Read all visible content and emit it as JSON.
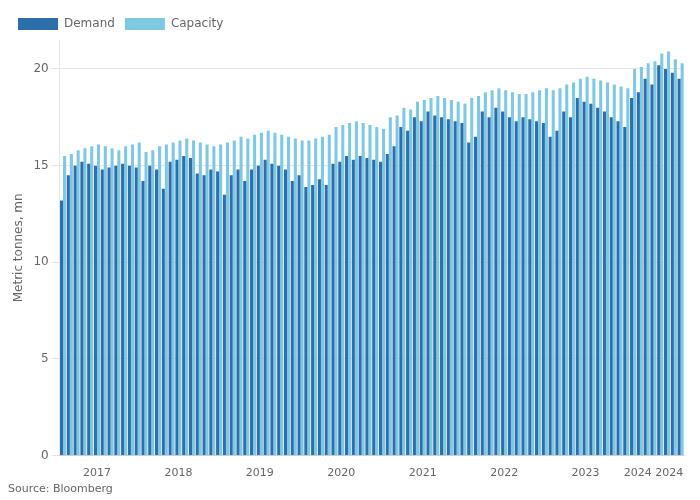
{
  "chart_data": {
    "type": "bar",
    "categories": [
      null,
      null,
      null,
      null,
      null,
      "2017",
      null,
      null,
      null,
      null,
      null,
      null,
      null,
      null,
      null,
      null,
      null,
      "2018",
      null,
      null,
      null,
      null,
      null,
      null,
      null,
      null,
      null,
      null,
      null,
      "2019",
      null,
      null,
      null,
      null,
      null,
      null,
      null,
      null,
      null,
      null,
      null,
      "2020",
      null,
      null,
      null,
      null,
      null,
      null,
      null,
      null,
      null,
      null,
      null,
      "2021",
      null,
      null,
      null,
      null,
      null,
      null,
      null,
      null,
      null,
      null,
      null,
      "2022",
      null,
      null,
      null,
      null,
      null,
      null,
      null,
      null,
      null,
      null,
      null,
      "2023",
      null,
      null,
      null,
      null,
      null,
      null,
      null,
      null,
      null,
      "2024 2024",
      null,
      null,
      null,
      null
    ],
    "series": [
      {
        "name": "Demand",
        "color": "#2d6fac",
        "values": [
          13.2,
          14.5,
          15.0,
          15.2,
          15.1,
          15.0,
          14.8,
          14.9,
          15.0,
          15.1,
          15.0,
          14.9,
          14.2,
          15.0,
          14.8,
          13.8,
          15.2,
          15.3,
          15.5,
          15.4,
          14.6,
          14.5,
          14.8,
          14.7,
          13.5,
          14.5,
          14.8,
          14.2,
          14.8,
          15.0,
          15.3,
          15.1,
          15.0,
          14.8,
          14.2,
          14.5,
          13.9,
          14.0,
          14.3,
          14.0,
          15.1,
          15.2,
          15.5,
          15.3,
          15.5,
          15.4,
          15.3,
          15.2,
          15.6,
          16.0,
          17.0,
          16.8,
          17.5,
          17.3,
          17.8,
          17.6,
          17.5,
          17.4,
          17.3,
          17.2,
          16.2,
          16.5,
          17.8,
          17.5,
          18.0,
          17.8,
          17.5,
          17.3,
          17.5,
          17.4,
          17.3,
          17.2,
          16.5,
          16.8,
          17.8,
          17.5,
          18.5,
          18.3,
          18.2,
          18.0,
          17.8,
          17.5,
          17.3,
          17.0,
          18.5,
          18.8,
          19.5,
          19.2,
          20.2,
          20.0,
          19.8,
          19.5
        ]
      },
      {
        "name": "Capacity",
        "color": "#7ec8e3",
        "values": [
          15.5,
          15.6,
          15.8,
          15.9,
          16.0,
          16.1,
          16.0,
          15.9,
          15.8,
          16.0,
          16.1,
          16.2,
          15.7,
          15.8,
          16.0,
          16.1,
          16.2,
          16.3,
          16.4,
          16.3,
          16.2,
          16.1,
          16.0,
          16.1,
          16.2,
          16.3,
          16.5,
          16.4,
          16.6,
          16.7,
          16.8,
          16.7,
          16.6,
          16.5,
          16.4,
          16.3,
          16.3,
          16.4,
          16.5,
          16.6,
          17.0,
          17.1,
          17.2,
          17.3,
          17.2,
          17.1,
          17.0,
          16.9,
          17.5,
          17.6,
          18.0,
          17.9,
          18.3,
          18.4,
          18.5,
          18.6,
          18.5,
          18.4,
          18.3,
          18.2,
          18.5,
          18.6,
          18.8,
          18.9,
          19.0,
          18.9,
          18.8,
          18.7,
          18.7,
          18.8,
          18.9,
          19.0,
          18.9,
          19.0,
          19.2,
          19.3,
          19.5,
          19.6,
          19.5,
          19.4,
          19.3,
          19.2,
          19.1,
          19.0,
          20.0,
          20.1,
          20.3,
          20.4,
          20.8,
          20.9,
          20.5,
          20.3
        ]
      }
    ],
    "ylabel": "Metric tonnes, mn",
    "annotations": [
      "Source: Bloomberg"
    ],
    "ylim": [
      0,
      21.5
    ],
    "yticks": [
      0,
      5,
      10,
      15,
      20
    ],
    "grid": true,
    "legend": "upper left"
  }
}
